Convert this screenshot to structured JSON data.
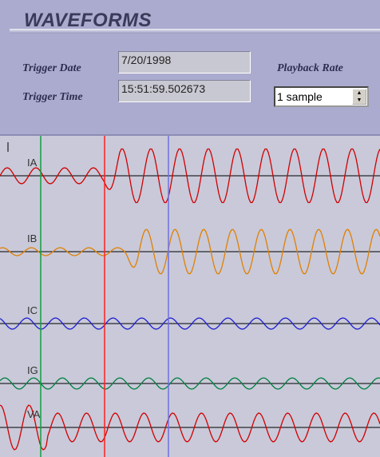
{
  "header": {
    "title": "WAVEFORMS"
  },
  "fields": {
    "trigger_date": {
      "label": "Trigger Date",
      "value": "7/20/1998"
    },
    "trigger_time": {
      "label": "Trigger Time",
      "value": "15:51:59.502673"
    },
    "playback_rate": {
      "label": "Playback Rate",
      "value": "1 sample"
    }
  },
  "channels": [
    "IA",
    "IB",
    "IC",
    "IG",
    "VA"
  ]
}
